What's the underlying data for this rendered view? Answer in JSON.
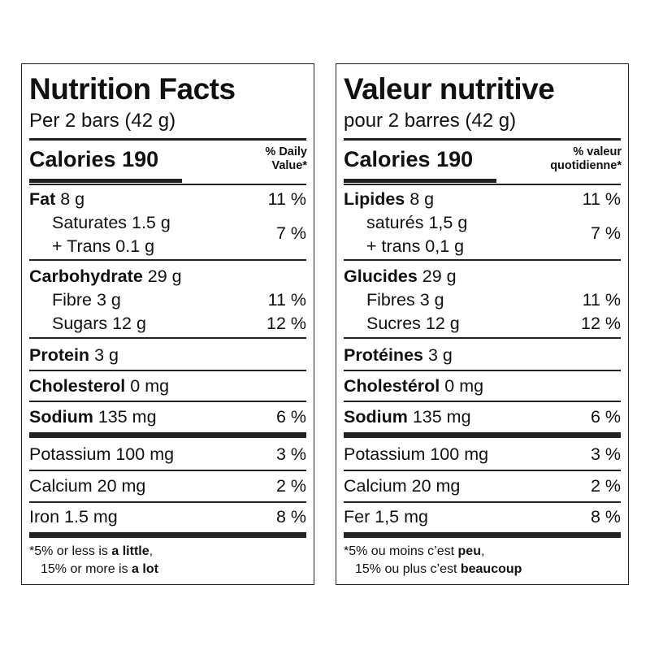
{
  "en": {
    "title": "Nutrition Facts",
    "serving": "Per 2 bars (42 g)",
    "calories_label": "Calories",
    "calories_value": "190",
    "dv_line1": "% Daily",
    "dv_line2": "Value*",
    "fat_label": "Fat",
    "fat_amount": "8 g",
    "fat_pct": "11 %",
    "saturates": "Saturates 1.5 g",
    "trans": "+ Trans 0.1 g",
    "sat_trans_pct": "7 %",
    "carb_label": "Carbohydrate",
    "carb_amount": "29 g",
    "fibre": "Fibre 3 g",
    "fibre_pct": "11 %",
    "sugars": "Sugars 12 g",
    "sugars_pct": "12 %",
    "protein_label": "Protein",
    "protein_amount": "3 g",
    "chol_label": "Cholesterol",
    "chol_amount": "0 mg",
    "sodium_label": "Sodium",
    "sodium_amount": "135 mg",
    "sodium_pct": "6 %",
    "potassium": "Potassium 100 mg",
    "potassium_pct": "3 %",
    "calcium": "Calcium 20 mg",
    "calcium_pct": "2 %",
    "iron": "Iron 1.5 mg",
    "iron_pct": "8 %",
    "foot1_a": "*5% or less is ",
    "foot1_b": "a little",
    "foot1_c": ",",
    "foot2_a": "15% or more is ",
    "foot2_b": "a lot"
  },
  "fr": {
    "title": "Valeur nutritive",
    "serving": "pour 2 barres (42 g)",
    "calories_label": "Calories",
    "calories_value": "190",
    "dv_line1": "% valeur",
    "dv_line2": "quotidienne*",
    "fat_label": "Lipides",
    "fat_amount": "8 g",
    "fat_pct": "11 %",
    "saturates": "saturés 1,5 g",
    "trans": "+ trans 0,1 g",
    "sat_trans_pct": "7 %",
    "carb_label": "Glucides",
    "carb_amount": "29 g",
    "fibre": "Fibres 3 g",
    "fibre_pct": "11 %",
    "sugars": "Sucres 12 g",
    "sugars_pct": "12 %",
    "protein_label": "Protéines",
    "protein_amount": "3 g",
    "chol_label": "Cholestérol",
    "chol_amount": "0 mg",
    "sodium_label": "Sodium",
    "sodium_amount": "135 mg",
    "sodium_pct": "6 %",
    "potassium": "Potassium 100 mg",
    "potassium_pct": "3 %",
    "calcium": "Calcium 20 mg",
    "calcium_pct": "2 %",
    "iron": "Fer 1,5 mg",
    "iron_pct": "8 %",
    "foot1_a": "*5% ou moins c’est ",
    "foot1_b": "peu",
    "foot1_c": ",",
    "foot2_a": "15% ou plus c’est ",
    "foot2_b": "beaucoup"
  }
}
